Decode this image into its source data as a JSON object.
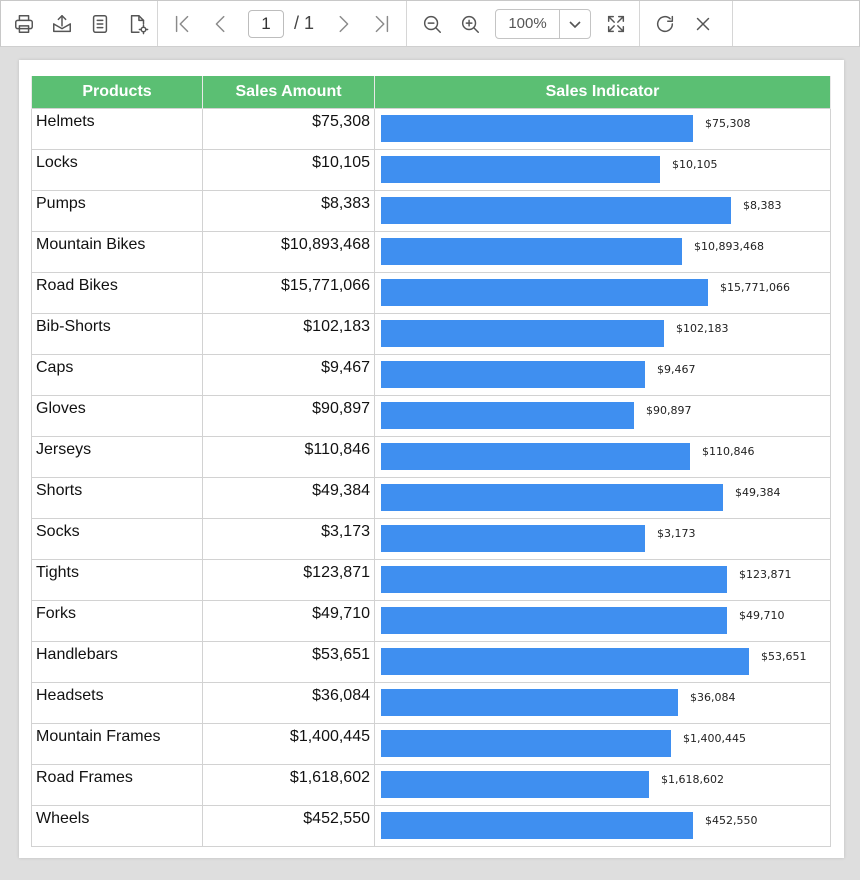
{
  "toolbar": {
    "page_current": "1",
    "page_total": "/ 1",
    "zoom": "100%"
  },
  "report": {
    "headers": [
      "Products",
      "Sales Amount",
      "Sales Indicator"
    ],
    "bar_color": "#3f8ff0",
    "header_color": "#5bbf73",
    "rows": [
      {
        "product": "Helmets",
        "amount": "$75,308",
        "indicator": "$75,308",
        "bar_fraction": 0.84
      },
      {
        "product": "Locks",
        "amount": "$10,105",
        "indicator": "$10,105",
        "bar_fraction": 0.75
      },
      {
        "product": "Pumps",
        "amount": "$8,383",
        "indicator": "$8,383",
        "bar_fraction": 0.94
      },
      {
        "product": "Mountain Bikes",
        "amount": "$10,893,468",
        "indicator": "$10,893,468",
        "bar_fraction": 0.81
      },
      {
        "product": "Road Bikes",
        "amount": "$15,771,066",
        "indicator": "$15,771,066",
        "bar_fraction": 0.88
      },
      {
        "product": "Bib-Shorts",
        "amount": "$102,183",
        "indicator": "$102,183",
        "bar_fraction": 0.76
      },
      {
        "product": "Caps",
        "amount": "$9,467",
        "indicator": "$9,467",
        "bar_fraction": 0.71
      },
      {
        "product": "Gloves",
        "amount": "$90,897",
        "indicator": "$90,897",
        "bar_fraction": 0.68
      },
      {
        "product": "Jerseys",
        "amount": "$110,846",
        "indicator": "$110,846",
        "bar_fraction": 0.83
      },
      {
        "product": "Shorts",
        "amount": "$49,384",
        "indicator": "$49,384",
        "bar_fraction": 0.92
      },
      {
        "product": "Socks",
        "amount": "$3,173",
        "indicator": "$3,173",
        "bar_fraction": 0.71
      },
      {
        "product": "Tights",
        "amount": "$123,871",
        "indicator": "$123,871",
        "bar_fraction": 0.93
      },
      {
        "product": "Forks",
        "amount": "$49,710",
        "indicator": "$49,710",
        "bar_fraction": 0.93
      },
      {
        "product": "Handlebars",
        "amount": "$53,651",
        "indicator": "$53,651",
        "bar_fraction": 0.99
      },
      {
        "product": "Headsets",
        "amount": "$36,084",
        "indicator": "$36,084",
        "bar_fraction": 0.8
      },
      {
        "product": "Mountain Frames",
        "amount": "$1,400,445",
        "indicator": "$1,400,445",
        "bar_fraction": 0.78
      },
      {
        "product": "Road Frames",
        "amount": "$1,618,602",
        "indicator": "$1,618,602",
        "bar_fraction": 0.72
      },
      {
        "product": "Wheels",
        "amount": "$452,550",
        "indicator": "$452,550",
        "bar_fraction": 0.84
      }
    ]
  }
}
